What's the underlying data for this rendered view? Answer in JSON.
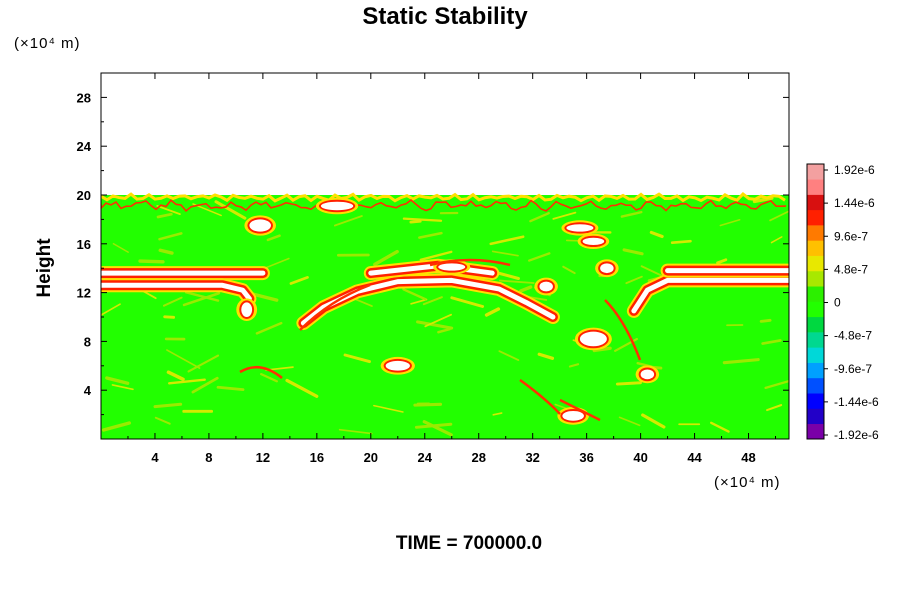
{
  "chart_data": {
    "type": "heatmap",
    "title": "Static Stability",
    "ylabel": "Height",
    "y_unit": "(×10⁴ m)",
    "x_unit": "(×10⁴ m)",
    "xlim": [
      0,
      51
    ],
    "ylim": [
      0,
      30
    ],
    "x_ticks": [
      4,
      8,
      12,
      16,
      20,
      24,
      28,
      32,
      36,
      40,
      44,
      48
    ],
    "y_ticks": [
      4,
      8,
      12,
      16,
      20,
      24,
      28
    ],
    "field_top_height": 20,
    "background_value": 0,
    "colorbar": {
      "min": -1.92e-06,
      "max": 1.92e-06,
      "tick_labels": [
        "1.92e-6",
        "1.44e-6",
        "9.6e-7",
        "4.8e-7",
        "0",
        "-4.8e-7",
        "-9.6e-7",
        "-1.44e-6",
        "-1.92e-6"
      ],
      "colors": [
        "#7a00a8",
        "#2200c8",
        "#0000ff",
        "#0050ff",
        "#00a0ff",
        "#00d8d8",
        "#00d890",
        "#00d840",
        "#22ff00",
        "#2cf000",
        "#a8e800",
        "#e8e800",
        "#ffc000",
        "#ff7a00",
        "#ff2000",
        "#d81010",
        "#ff8080",
        "#f3a0a0"
      ]
    },
    "features": [
      {
        "name": "stable layer band",
        "x": [
          0,
          51
        ],
        "y": [
          12.5,
          13.8
        ]
      },
      {
        "name": "stable arc",
        "x": [
          14,
          34
        ],
        "y": [
          9,
          13.5
        ]
      },
      {
        "name": "upper stable layer",
        "x": [
          0,
          51
        ],
        "y": [
          19,
          20
        ]
      }
    ],
    "footer": "TIME = 700000.0"
  }
}
